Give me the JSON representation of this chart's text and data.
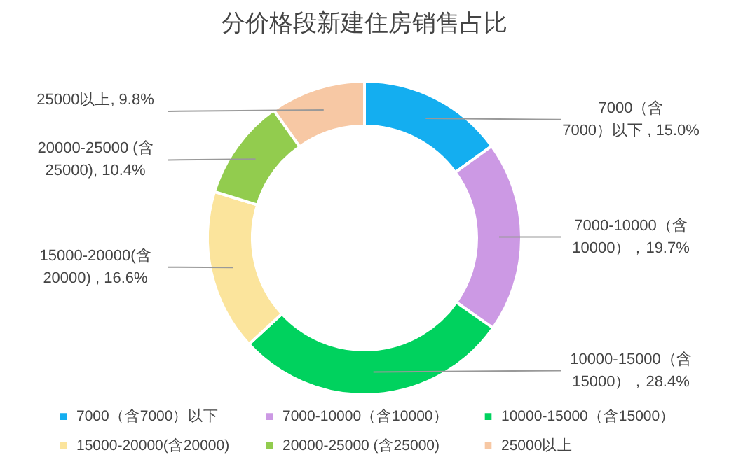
{
  "chart_data": {
    "type": "donut",
    "title": "分价格段新建住房销售占比",
    "categories": [
      "7000（含7000）以下",
      "7000-10000（含10000）",
      "10000-15000（含15000）",
      "15000-20000(含20000)",
      "20000-25000 (含25000)",
      "25000以上"
    ],
    "values": [
      15.0,
      19.7,
      28.4,
      16.6,
      10.4,
      9.8
    ],
    "colors": [
      "#14aef0",
      "#cc99e4",
      "#00d25e",
      "#fbe49c",
      "#92cc4e",
      "#f7c8a4"
    ],
    "value_labels": [
      "7000（含\n7000）以下 , 15.0%",
      "7000-10000（含\n10000），19.7%",
      "10000-15000（含\n15000），28.4%",
      "15000-20000(含\n20000) , 16.6%",
      "20000-25000 (含\n25000), 10.4%",
      "25000以上, 9.8%"
    ],
    "legend": "bottom"
  }
}
